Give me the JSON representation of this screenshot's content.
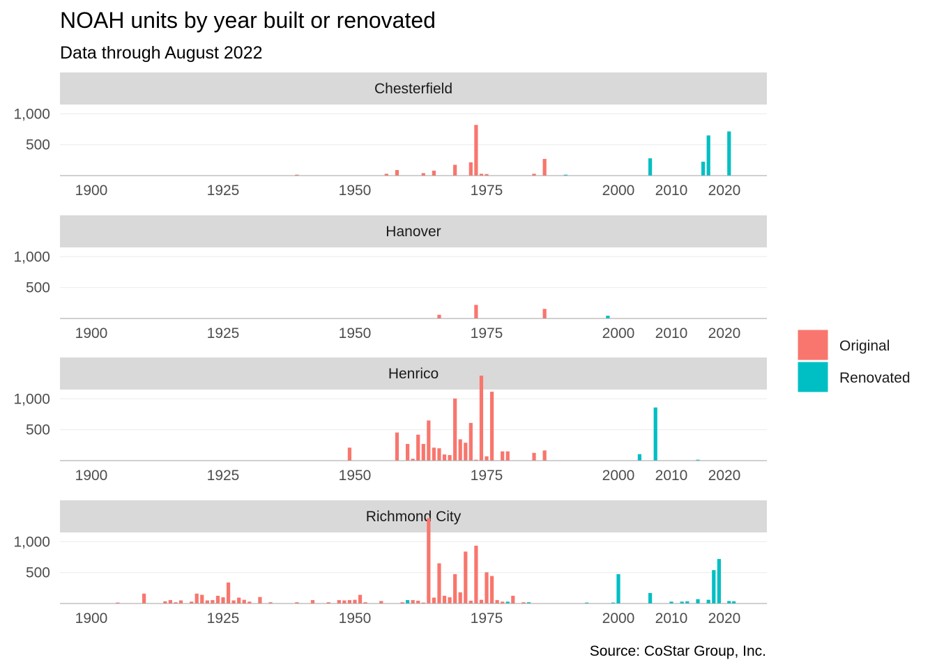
{
  "title": "NOAH units by year built or renovated",
  "subtitle": "Data through August 2022",
  "caption": "Source: CoStar Group, Inc.",
  "colors": {
    "Original": "#F8766D",
    "Renovated": "#00BFC4",
    "strip": "#D9D9D9",
    "grid": "#EBEBEB",
    "axis": "#A0A0A0"
  },
  "legend": [
    {
      "label": "Original",
      "color": "#F8766D"
    },
    {
      "label": "Renovated",
      "color": "#00BFC4"
    }
  ],
  "chart_data": {
    "type": "bar",
    "layout": "faceted",
    "legend_position": "right",
    "x_ticks": [
      {
        "year": 1900,
        "label": "1900"
      },
      {
        "year": 1925,
        "label": "1925"
      },
      {
        "year": 1950,
        "label": "1950"
      },
      {
        "year": 1975,
        "label": "1975"
      },
      {
        "year": 2000,
        "label": "2000"
      },
      {
        "year": 2010,
        "label": "2010"
      },
      {
        "year": 2020,
        "label": "2020"
      }
    ],
    "y_ticks": [
      {
        "value": 500,
        "label": "500"
      },
      {
        "value": 1000,
        "label": "1,000"
      }
    ],
    "xlim": [
      1894,
      2029
    ],
    "ylim": [
      0,
      1150
    ],
    "facets": [
      {
        "name": "Chesterfield",
        "series": [
          {
            "name": "Original",
            "points": [
              [
                1939,
                15
              ],
              [
                1956,
                30
              ],
              [
                1958,
                90
              ],
              [
                1963,
                40
              ],
              [
                1965,
                80
              ],
              [
                1969,
                175
              ],
              [
                1972,
                215
              ],
              [
                1973,
                820
              ],
              [
                1974,
                30
              ],
              [
                1975,
                25
              ],
              [
                1984,
                30
              ],
              [
                1986,
                270
              ]
            ]
          },
          {
            "name": "Renovated",
            "points": [
              [
                1990,
                15
              ],
              [
                2006,
                280
              ],
              [
                2016,
                225
              ],
              [
                2017,
                650
              ],
              [
                2021,
                715
              ]
            ]
          }
        ]
      },
      {
        "name": "Hanover",
        "series": [
          {
            "name": "Original",
            "points": [
              [
                1966,
                60
              ],
              [
                1973,
                220
              ],
              [
                1986,
                155
              ]
            ]
          },
          {
            "name": "Renovated",
            "points": [
              [
                1998,
                45
              ]
            ]
          }
        ]
      },
      {
        "name": "Henrico",
        "series": [
          {
            "name": "Original",
            "points": [
              [
                1949,
                210
              ],
              [
                1958,
                455
              ],
              [
                1960,
                270
              ],
              [
                1961,
                30
              ],
              [
                1962,
                420
              ],
              [
                1963,
                270
              ],
              [
                1964,
                650
              ],
              [
                1965,
                210
              ],
              [
                1966,
                200
              ],
              [
                1967,
                100
              ],
              [
                1968,
                90
              ],
              [
                1969,
                1005
              ],
              [
                1970,
                345
              ],
              [
                1971,
                290
              ],
              [
                1972,
                610
              ],
              [
                1973,
                15
              ],
              [
                1974,
                1375
              ],
              [
                1975,
                70
              ],
              [
                1976,
                1115
              ],
              [
                1978,
                150
              ],
              [
                1979,
                150
              ],
              [
                1984,
                125
              ],
              [
                1986,
                165
              ]
            ]
          },
          {
            "name": "Renovated",
            "points": [
              [
                2004,
                105
              ],
              [
                2007,
                860
              ],
              [
                2015,
                15
              ]
            ]
          }
        ]
      },
      {
        "name": "Richmond City",
        "series": [
          {
            "name": "Original",
            "points": [
              [
                1905,
                15
              ],
              [
                1910,
                160
              ],
              [
                1914,
                35
              ],
              [
                1915,
                55
              ],
              [
                1916,
                20
              ],
              [
                1917,
                50
              ],
              [
                1919,
                30
              ],
              [
                1920,
                160
              ],
              [
                1921,
                140
              ],
              [
                1922,
                50
              ],
              [
                1923,
                55
              ],
              [
                1924,
                125
              ],
              [
                1925,
                100
              ],
              [
                1926,
                340
              ],
              [
                1927,
                50
              ],
              [
                1928,
                95
              ],
              [
                1929,
                60
              ],
              [
                1930,
                30
              ],
              [
                1932,
                105
              ],
              [
                1934,
                20
              ],
              [
                1939,
                20
              ],
              [
                1942,
                55
              ],
              [
                1945,
                20
              ],
              [
                1947,
                55
              ],
              [
                1948,
                50
              ],
              [
                1949,
                55
              ],
              [
                1950,
                60
              ],
              [
                1951,
                140
              ],
              [
                1952,
                20
              ],
              [
                1955,
                40
              ],
              [
                1959,
                20
              ],
              [
                1960,
                15
              ],
              [
                1961,
                55
              ],
              [
                1962,
                45
              ],
              [
                1963,
                15
              ],
              [
                1964,
                1380
              ],
              [
                1965,
                95
              ],
              [
                1966,
                650
              ],
              [
                1967,
                125
              ],
              [
                1968,
                100
              ],
              [
                1969,
                475
              ],
              [
                1970,
                180
              ],
              [
                1971,
                840
              ],
              [
                1972,
                45
              ],
              [
                1973,
                935
              ],
              [
                1974,
                60
              ],
              [
                1975,
                505
              ],
              [
                1976,
                445
              ],
              [
                1977,
                55
              ],
              [
                1978,
                30
              ],
              [
                1980,
                125
              ],
              [
                1982,
                20
              ]
            ]
          },
          {
            "name": "Renovated",
            "points": [
              [
                1960,
                55
              ],
              [
                1979,
                30
              ],
              [
                1983,
                20
              ],
              [
                1994,
                15
              ],
              [
                1999,
                15
              ],
              [
                2000,
                475
              ],
              [
                2006,
                170
              ],
              [
                2010,
                30
              ],
              [
                2012,
                30
              ],
              [
                2013,
                35
              ],
              [
                2015,
                70
              ],
              [
                2017,
                60
              ],
              [
                2018,
                540
              ],
              [
                2019,
                720
              ],
              [
                2021,
                40
              ],
              [
                2022,
                35
              ]
            ]
          }
        ]
      }
    ]
  }
}
